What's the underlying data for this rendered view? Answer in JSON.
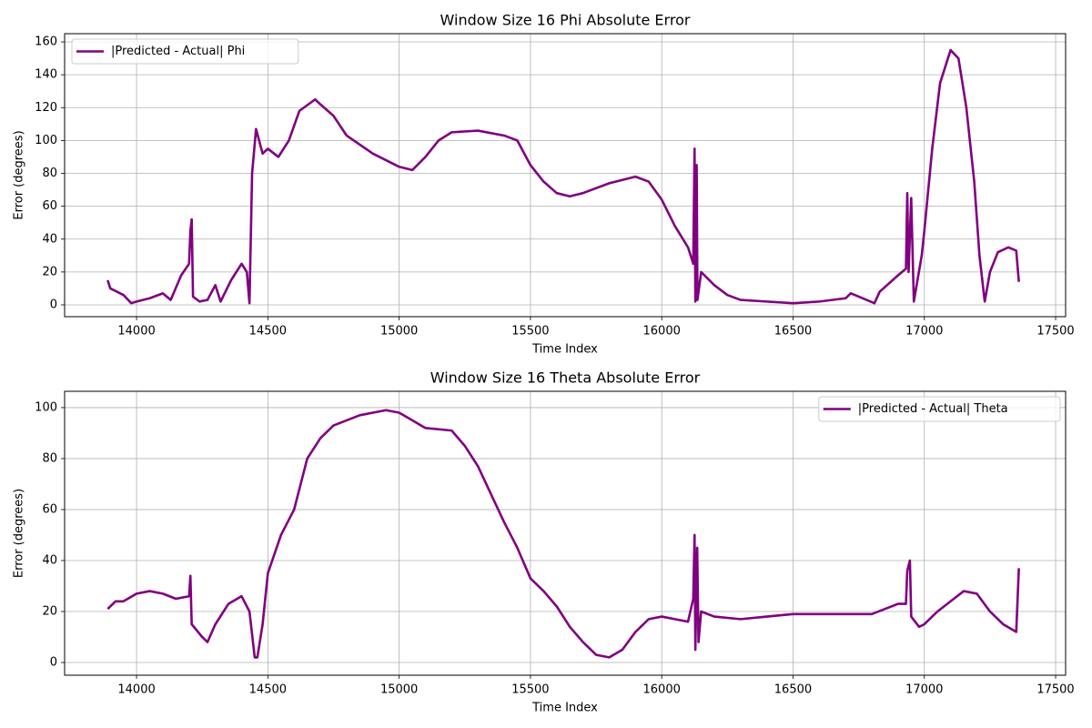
{
  "chart_data": [
    {
      "type": "line",
      "title": "Window Size 16 Phi Absolute Error",
      "x_label": "Time Index",
      "y_label": "Error (degrees)",
      "x": [
        13890,
        13900,
        13950,
        13980,
        14000,
        14050,
        14100,
        14130,
        14170,
        14200,
        14205,
        14210,
        14215,
        14240,
        14270,
        14300,
        14320,
        14360,
        14400,
        14420,
        14430,
        14440,
        14455,
        14480,
        14500,
        14540,
        14580,
        14620,
        14680,
        14700,
        14750,
        14800,
        14900,
        15000,
        15050,
        15100,
        15150,
        15200,
        15300,
        15400,
        15450,
        15500,
        15550,
        15600,
        15650,
        15700,
        15800,
        15900,
        15950,
        16000,
        16050,
        16100,
        16120,
        16125,
        16128,
        16133,
        16136,
        16150,
        16200,
        16250,
        16300,
        16400,
        16500,
        16600,
        16700,
        16720,
        16780,
        16810,
        16830,
        16900,
        16930,
        16935,
        16940,
        16950,
        16960,
        16990,
        17000,
        17030,
        17060,
        17100,
        17130,
        17160,
        17190,
        17210,
        17230,
        17250,
        17280,
        17320,
        17350,
        17360
      ],
      "series": [
        {
          "name": "|Predicted - Actual| Phi",
          "color": "#800080",
          "values": [
            15,
            10,
            6,
            1,
            2,
            4,
            7,
            3,
            18,
            25,
            45,
            52,
            5,
            2,
            3,
            12,
            2,
            15,
            25,
            20,
            1,
            80,
            107,
            92,
            95,
            90,
            100,
            118,
            125,
            122,
            115,
            103,
            92,
            84,
            82,
            90,
            100,
            105,
            106,
            103,
            100,
            85,
            75,
            68,
            66,
            68,
            74,
            78,
            75,
            64,
            48,
            35,
            25,
            95,
            2,
            85,
            3,
            20,
            12,
            6,
            3,
            2,
            1,
            2,
            4,
            7,
            3,
            1,
            8,
            18,
            22,
            68,
            20,
            65,
            2,
            30,
            45,
            95,
            135,
            155,
            150,
            120,
            75,
            30,
            2,
            20,
            32,
            35,
            33,
            14
          ]
        }
      ],
      "xlim": [
        13726,
        17538
      ],
      "ylim": [
        -7.2,
        165
      ],
      "xticks": [
        14000,
        14500,
        15000,
        15500,
        16000,
        16500,
        17000,
        17500
      ],
      "yticks": [
        0,
        20,
        40,
        60,
        80,
        100,
        120,
        140,
        160
      ],
      "grid": true,
      "legend": "upper left"
    },
    {
      "type": "line",
      "title": "Window Size 16 Theta Absolute Error",
      "x_label": "Time Index",
      "y_label": "Error (degrees)",
      "x": [
        13890,
        13920,
        13950,
        14000,
        14050,
        14100,
        14150,
        14200,
        14205,
        14210,
        14250,
        14270,
        14300,
        14350,
        14400,
        14430,
        14450,
        14460,
        14480,
        14500,
        14550,
        14600,
        14650,
        14700,
        14750,
        14800,
        14850,
        14900,
        14950,
        15000,
        15050,
        15100,
        15200,
        15250,
        15300,
        15350,
        15400,
        15450,
        15500,
        15550,
        15600,
        15650,
        15700,
        15750,
        15800,
        15850,
        15900,
        15950,
        16000,
        16050,
        16100,
        16120,
        16125,
        16128,
        16135,
        16140,
        16150,
        16200,
        16300,
        16400,
        16500,
        16600,
        16700,
        16800,
        16900,
        16930,
        16935,
        16945,
        16950,
        16980,
        17000,
        17050,
        17100,
        17150,
        17200,
        17250,
        17300,
        17350,
        17360
      ],
      "series": [
        {
          "name": "|Predicted - Actual| Theta",
          "color": "#800080",
          "values": [
            21,
            24,
            24,
            27,
            28,
            27,
            25,
            26,
            34,
            15,
            10,
            8,
            15,
            23,
            26,
            20,
            2,
            2,
            15,
            35,
            50,
            60,
            80,
            88,
            93,
            95,
            97,
            98,
            99,
            98,
            95,
            92,
            91,
            85,
            77,
            66,
            55,
            45,
            33,
            28,
            22,
            14,
            8,
            3,
            2,
            5,
            12,
            17,
            18,
            17,
            16,
            25,
            50,
            5,
            45,
            8,
            20,
            18,
            17,
            18,
            19,
            19,
            19,
            19,
            23,
            23,
            36,
            40,
            18,
            14,
            15,
            20,
            24,
            28,
            27,
            20,
            15,
            12,
            37
          ]
        }
      ],
      "xlim": [
        13726,
        17538
      ],
      "ylim": [
        -5,
        106.4
      ],
      "xticks": [
        14000,
        14500,
        15000,
        15500,
        16000,
        16500,
        17000,
        17500
      ],
      "yticks": [
        0,
        20,
        40,
        60,
        80,
        100
      ],
      "grid": true,
      "legend": "upper right"
    }
  ]
}
